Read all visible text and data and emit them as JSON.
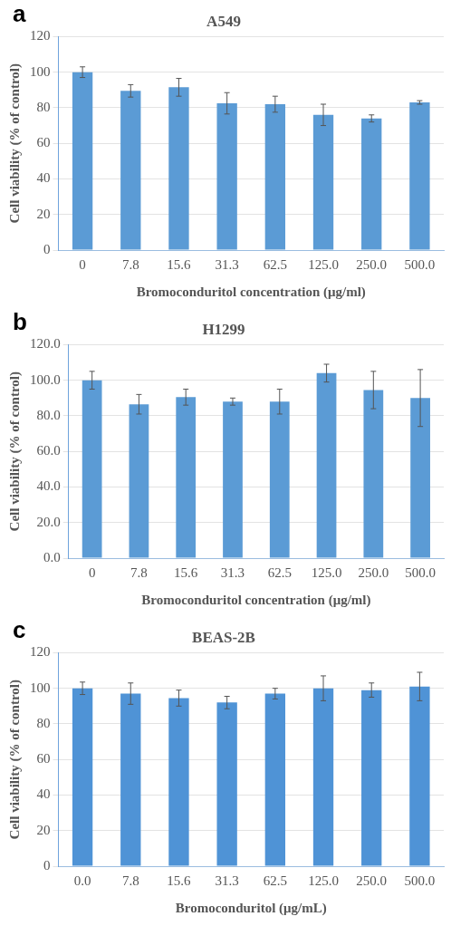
{
  "chart_data": [
    {
      "type": "bar",
      "title": "A549",
      "xlabel": "Bromoconduritol concentration (μg/ml)",
      "ylabel": "Cell viability (% of control)",
      "annotations": [
        "a"
      ],
      "categories": [
        "0",
        "7.8",
        "15.6",
        "31.3",
        "62.5",
        "125.0",
        "250.0",
        "500.0"
      ],
      "values": [
        100,
        89.5,
        91.5,
        82.5,
        82,
        76,
        74,
        83
      ],
      "errors": [
        3,
        3.5,
        5,
        6,
        4.5,
        6,
        2,
        1
      ],
      "color": "#5b9bd5",
      "ylim": [
        0,
        120
      ],
      "yticks": [
        0,
        20,
        40,
        60,
        80,
        100,
        120
      ],
      "grid": "y"
    },
    {
      "type": "bar",
      "title": "H1299",
      "xlabel": "Bromoconduritol concentration (μg/ml)",
      "ylabel": "Cell viability (% of control)",
      "annotations": [
        "b"
      ],
      "categories": [
        "0",
        "7.8",
        "15.6",
        "31.3",
        "62.5",
        "125.0",
        "250.0",
        "500.0"
      ],
      "values": [
        100,
        86.5,
        90.5,
        88,
        88,
        104,
        94.5,
        90
      ],
      "errors": [
        5,
        5.5,
        4.5,
        2,
        7,
        5,
        10.5,
        16
      ],
      "color": "#5b9bd5",
      "ylim": [
        0,
        120
      ],
      "yticks": [
        {
          "value": 0,
          "label": "0.0"
        },
        {
          "value": 20,
          "label": "20.0"
        },
        {
          "value": 40,
          "label": "40.0"
        },
        {
          "value": 60,
          "label": "60.0"
        },
        {
          "value": 80,
          "label": "80.0"
        },
        {
          "value": 100,
          "label": "100.0"
        },
        {
          "value": 120,
          "label": "120.0"
        }
      ],
      "grid": "y"
    },
    {
      "type": "bar",
      "title": "BEAS-2B",
      "xlabel": "Bromoconduritol (μg/mL)",
      "ylabel": "Cell viability (% of control)",
      "annotations": [
        "c"
      ],
      "categories": [
        "0.0",
        "7.8",
        "15.6",
        "31.3",
        "62.5",
        "125.0",
        "250.0",
        "500.0"
      ],
      "values": [
        100,
        97,
        94.5,
        92,
        97,
        100,
        99,
        101
      ],
      "errors": [
        3.5,
        6,
        4.5,
        3.5,
        3,
        7,
        4,
        8
      ],
      "color": "#4f93d6",
      "ylim": [
        0,
        120
      ],
      "yticks": [
        0,
        20,
        40,
        60,
        80,
        100,
        120
      ],
      "grid": "y"
    }
  ]
}
